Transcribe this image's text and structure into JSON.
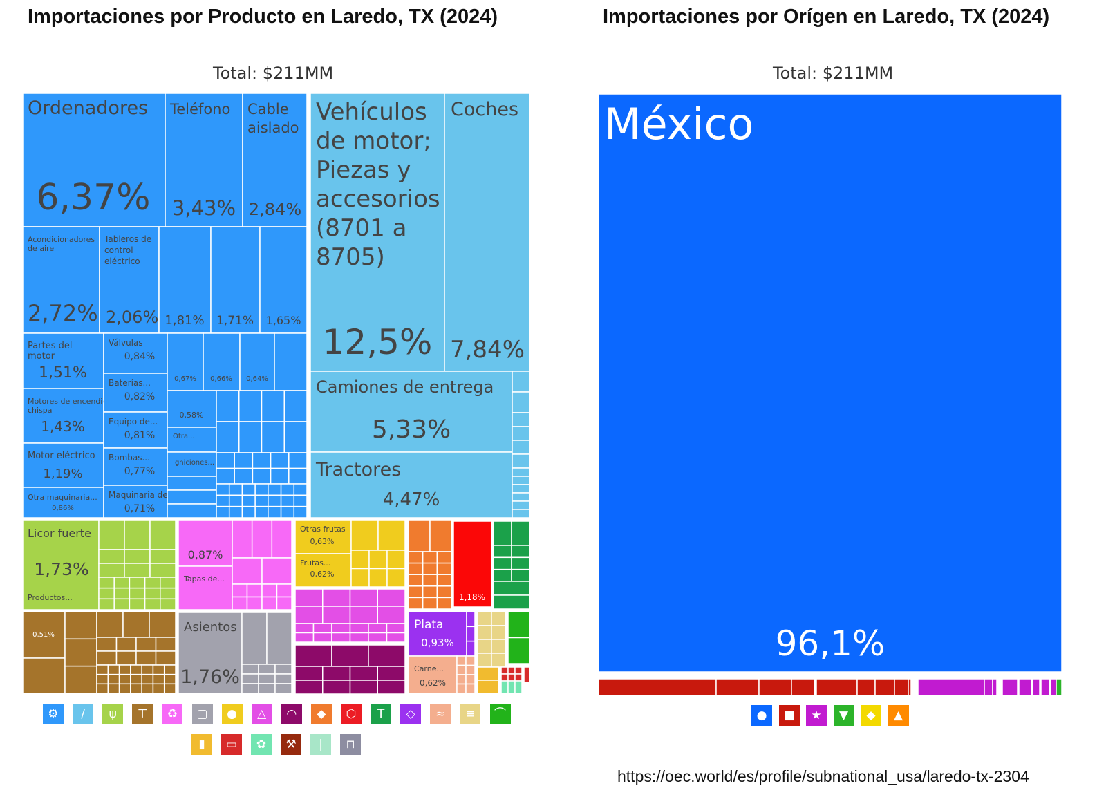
{
  "left": {
    "title": "Importaciones por Producto en Laredo, TX (2024)",
    "total": "Total: $211MM"
  },
  "right": {
    "title": "Importaciones por Orígen en Laredo, TX (2024)",
    "total": "Total: $211MM"
  },
  "source": "https://oec.world/es/profile/subnational_usa/laredo-tx-2304",
  "colors": {
    "machinery": "#2f98fb",
    "transportation": "#69c4ec",
    "foodstuffs": "#a6d34a",
    "animal_hides": "#a5742b",
    "plastics_rubbers": "#f769f7",
    "vegetable_products": "#f0cc1e",
    "metals": "#a2a2ad",
    "chemical_products": "#e34fe6",
    "instruments": "#8d0a69",
    "mineral_products": "#f07b2e",
    "textiles": "#1ba14a",
    "precious_metals": "#9b31f0",
    "animal_products": "#f4ae8e",
    "paper_goods": "#e8d587",
    "footwear": "#22b31a",
    "misc": "#f1bb2f",
    "arts": "#d72a2a",
    "weapons": "#72e5b1",
    "mexico_blue": "#0b68ff",
    "asia_red": "#c8190d",
    "europe_purple": "#c11bd0"
  },
  "chart_data": [
    {
      "type": "treemap",
      "title": "Importaciones por Producto en Laredo, TX (2024)",
      "subtitle": "Total: $211MM",
      "unit": "% of total",
      "items": [
        {
          "name": "Ordenadores",
          "value": 6.37,
          "label": "6,37%",
          "group": "machinery"
        },
        {
          "name": "Teléfono",
          "value": 3.43,
          "label": "3,43%",
          "group": "machinery"
        },
        {
          "name": "Cable aislado",
          "value": 2.84,
          "label": "2,84%",
          "group": "machinery"
        },
        {
          "name": "Acondicionadores de aire",
          "value": 2.72,
          "label": "2,72%",
          "group": "machinery"
        },
        {
          "name": "Tableros de control eléctrico",
          "value": 2.06,
          "label": "2,06%",
          "group": "machinery"
        },
        {
          "name": "",
          "value": 1.81,
          "label": "1,81%",
          "group": "machinery"
        },
        {
          "name": "",
          "value": 1.71,
          "label": "1,71%",
          "group": "machinery"
        },
        {
          "name": "",
          "value": 1.65,
          "label": "1,65%",
          "group": "machinery"
        },
        {
          "name": "Partes del motor",
          "value": 1.51,
          "label": "1,51%",
          "group": "machinery"
        },
        {
          "name": "Motores de encendido chispa",
          "value": 1.43,
          "label": "1,43%",
          "group": "machinery"
        },
        {
          "name": "Motor eléctrico",
          "value": 1.19,
          "label": "1,19%",
          "group": "machinery"
        },
        {
          "name": "Otra maquinaria...",
          "value": 0.86,
          "label": "0,86%",
          "group": "machinery"
        },
        {
          "name": "Válvulas",
          "value": 0.84,
          "label": "0,84%",
          "group": "machinery"
        },
        {
          "name": "Baterías...",
          "value": 0.82,
          "label": "0,82%",
          "group": "machinery"
        },
        {
          "name": "Equipo de...",
          "value": 0.81,
          "label": "0,81%",
          "group": "machinery"
        },
        {
          "name": "Bombas...",
          "value": 0.77,
          "label": "0,77%",
          "group": "machinery"
        },
        {
          "name": "Maquinaria de...",
          "value": 0.71,
          "label": "0,71%",
          "group": "machinery"
        },
        {
          "name": "",
          "value": 0.67,
          "label": "0,67%",
          "group": "machinery"
        },
        {
          "name": "",
          "value": 0.66,
          "label": "0,66%",
          "group": "machinery"
        },
        {
          "name": "",
          "value": 0.64,
          "label": "0,64%",
          "group": "machinery"
        },
        {
          "name": "",
          "value": 0.58,
          "label": "0,58%",
          "group": "machinery"
        },
        {
          "name": "Otra...",
          "value": null,
          "label": "",
          "group": "machinery"
        },
        {
          "name": "Igniciones...",
          "value": null,
          "label": "",
          "group": "machinery"
        },
        {
          "name": "Vehículos de motor; Piezas y accesorios (8701 a 8705)",
          "value": 12.5,
          "label": "12,5%",
          "group": "transportation"
        },
        {
          "name": "Coches",
          "value": 7.84,
          "label": "7,84%",
          "group": "transportation"
        },
        {
          "name": "Camiones de entrega",
          "value": 5.33,
          "label": "5,33%",
          "group": "transportation"
        },
        {
          "name": "Tractores",
          "value": 4.47,
          "label": "4,47%",
          "group": "transportation"
        },
        {
          "name": "Licor fuerte",
          "value": 1.73,
          "label": "1,73%",
          "group": "foodstuffs"
        },
        {
          "name": "Productos...",
          "value": null,
          "label": "",
          "group": "foodstuffs"
        },
        {
          "name": "",
          "value": 0.87,
          "label": "0,87%",
          "group": "plastics_rubbers"
        },
        {
          "name": "Tapas de...",
          "value": null,
          "label": "",
          "group": "plastics_rubbers"
        },
        {
          "name": "Otras frutas",
          "value": 0.63,
          "label": "0,63%",
          "group": "vegetable_products"
        },
        {
          "name": "Frutas...",
          "value": 0.62,
          "label": "0,62%",
          "group": "vegetable_products"
        },
        {
          "name": "",
          "value": 1.18,
          "label": "1,18%",
          "group": "arts"
        },
        {
          "name": "",
          "value": 0.51,
          "label": "0,51%",
          "group": "animal_hides"
        },
        {
          "name": "Asientos",
          "value": 1.76,
          "label": "1,76%",
          "group": "metals"
        },
        {
          "name": "Plata",
          "value": 0.93,
          "label": "0,93%",
          "group": "precious_metals"
        },
        {
          "name": "Carne...",
          "value": 0.62,
          "label": "0,62%",
          "group": "animal_products"
        }
      ],
      "legend_icons": [
        "gear-icon",
        "road-icon",
        "wheat-icon",
        "anvil-icon",
        "recycle-icon",
        "box-icon",
        "apple-icon",
        "flask-icon",
        "gauge-icon",
        "stone-icon",
        "cube-icon",
        "shirt-icon",
        "diamond-icon",
        "cow-icon",
        "scroll-icon",
        "shoe-icon",
        "bottle-icon",
        "ticket-icon",
        "hide-icon",
        "hammer-icon",
        "bullets-icon",
        "easel-icon"
      ]
    },
    {
      "type": "treemap",
      "title": "Importaciones por Orígen en Laredo, TX (2024)",
      "subtitle": "Total: $211MM",
      "unit": "% of total",
      "items": [
        {
          "name": "México",
          "value": 96.1,
          "label": "96,1%",
          "group": "north_america"
        }
      ],
      "legend_icons": [
        "north-america-icon",
        "asia-icon",
        "europe-icon",
        "south-america-icon",
        "africa-icon",
        "oceania-icon"
      ]
    }
  ]
}
